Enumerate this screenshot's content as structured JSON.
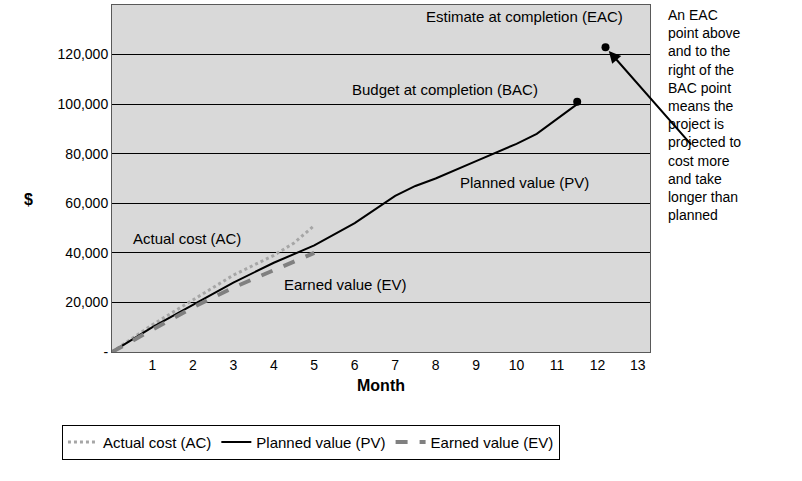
{
  "chart_data": {
    "type": "line",
    "x_label": "Month",
    "y_label": "$",
    "xlim": [
      0,
      13.3
    ],
    "xticks": [
      1,
      2,
      3,
      4,
      5,
      6,
      7,
      8,
      9,
      10,
      11,
      12,
      13
    ],
    "ylim": [
      0,
      140000
    ],
    "yticks": [
      {
        "value": 0,
        "label": "-"
      },
      {
        "value": 20000,
        "label": "20,000"
      },
      {
        "value": 40000,
        "label": "40,000"
      },
      {
        "value": 60000,
        "label": "60,000"
      },
      {
        "value": 80000,
        "label": "80,000"
      },
      {
        "value": 100000,
        "label": "100,000"
      },
      {
        "value": 120000,
        "label": "120,000"
      }
    ],
    "grid": true,
    "legend": "bottom",
    "series": [
      {
        "name": "Actual cost (AC)",
        "color": "#a6a6a6",
        "line_style": "dotted",
        "x": [
          0,
          1,
          2,
          3,
          4,
          4.5,
          5
        ],
        "values": [
          0,
          11000,
          21000,
          31000,
          39000,
          44000,
          51000
        ]
      },
      {
        "name": "Planned value (PV)",
        "color": "#000000",
        "line_style": "solid",
        "x": [
          0,
          1,
          2,
          3,
          4,
          5,
          6,
          7,
          7.5,
          8,
          9,
          10,
          10.5,
          11,
          11.5
        ],
        "values": [
          0,
          10000,
          19000,
          28000,
          36000,
          43000,
          52000,
          63000,
          67000,
          70000,
          77000,
          84000,
          88000,
          94000,
          100000
        ]
      },
      {
        "name": "Earned value (EV)",
        "color": "#808080",
        "line_style": "dashed",
        "x": [
          0,
          1,
          2,
          3,
          4,
          5
        ],
        "values": [
          0,
          9000,
          18000,
          26000,
          33000,
          40000
        ]
      }
    ],
    "points": [
      {
        "name": "Budget at completion (BAC)",
        "x": 11.5,
        "y": 101000,
        "color": "#000000"
      },
      {
        "name": "Estimate at completion (EAC)",
        "x": 12.2,
        "y": 123000,
        "color": "#000000"
      }
    ],
    "annotations": [
      {
        "lines": [
          "An EAC",
          "point above",
          "and to the",
          "right of the",
          "BAC point",
          "means the",
          "project is",
          "projected to",
          "cost more",
          "and take",
          "longer than",
          "planned"
        ]
      }
    ]
  }
}
